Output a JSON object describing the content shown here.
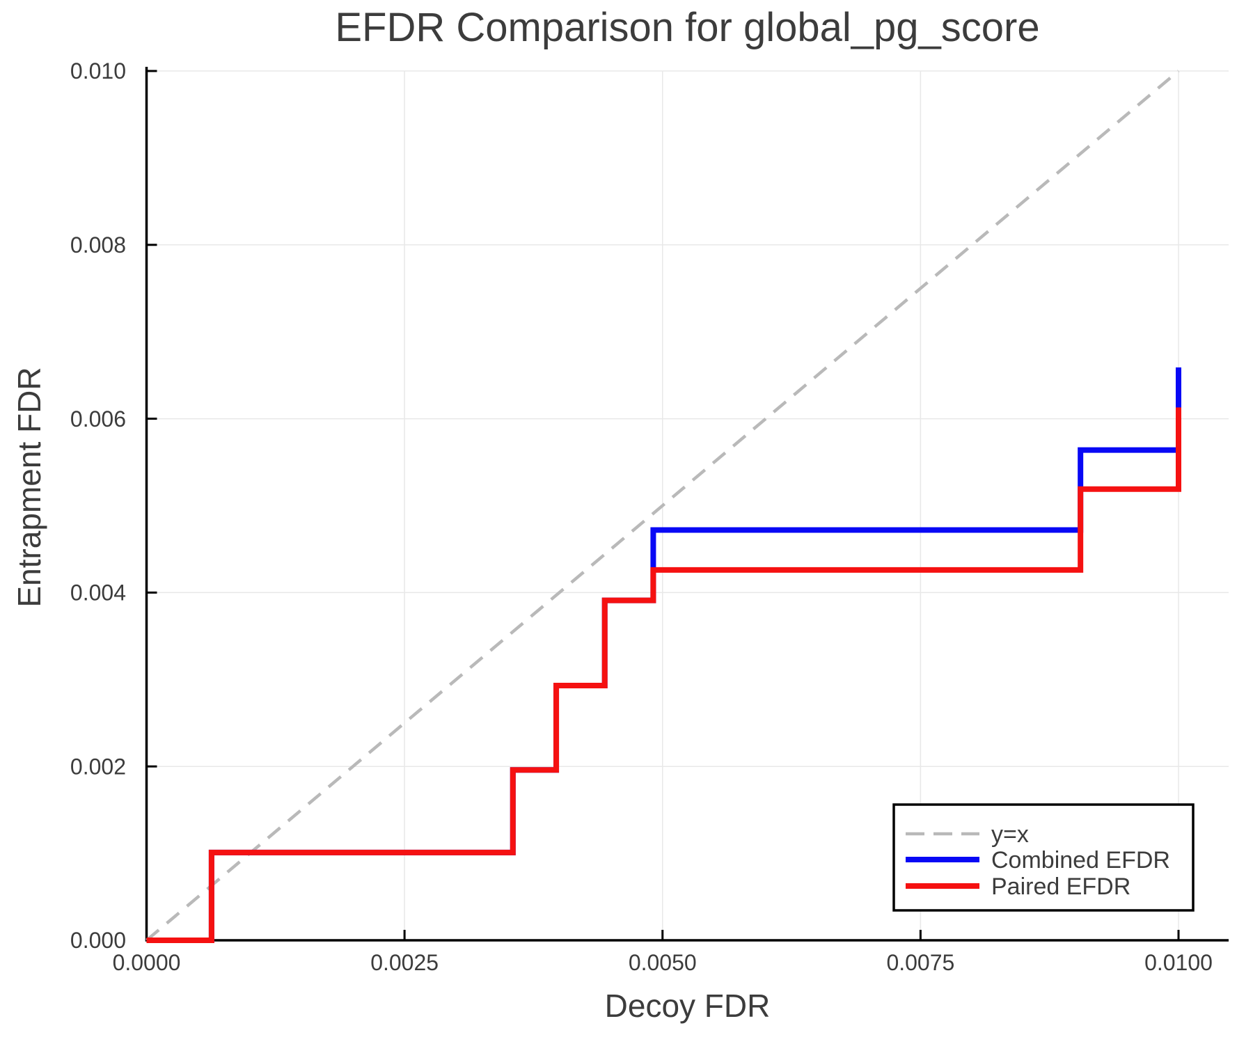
{
  "chart_data": {
    "type": "line",
    "subtype": "step",
    "title": "EFDR Comparison for global_pg_score",
    "xlabel": "Decoy FDR",
    "ylabel": "Entrapment FDR",
    "xlim": [
      0.0,
      0.01
    ],
    "ylim": [
      0.0,
      0.01
    ],
    "grid": true,
    "xticks": {
      "values": [
        0.0,
        0.0025,
        0.005,
        0.0075,
        0.01
      ],
      "labels": [
        "0.0000",
        "0.0025",
        "0.0050",
        "0.0075",
        "0.0100"
      ]
    },
    "yticks": {
      "values": [
        0.0,
        0.002,
        0.004,
        0.006,
        0.008,
        0.01
      ],
      "labels": [
        "0.000",
        "0.002",
        "0.004",
        "0.006",
        "0.008",
        "0.010"
      ]
    },
    "legend": {
      "position": "lower right",
      "entries": [
        "y=x",
        "Combined EFDR",
        "Paired EFDR"
      ]
    },
    "series": [
      {
        "name": "y=x",
        "color": "#b9b9b9",
        "style": "dashed",
        "width": 4.5,
        "points": [
          [
            0.0,
            0.0
          ],
          [
            0.01,
            0.01
          ]
        ]
      },
      {
        "name": "Combined EFDR",
        "color": "#0808f5",
        "style": "solid",
        "width": 8,
        "points": [
          [
            0.0,
            0.0
          ],
          [
            0.00063,
            0.0
          ],
          [
            0.00063,
            0.00101
          ],
          [
            0.00355,
            0.00101
          ],
          [
            0.00355,
            0.00196
          ],
          [
            0.00397,
            0.00196
          ],
          [
            0.00397,
            0.00293
          ],
          [
            0.00444,
            0.00293
          ],
          [
            0.00444,
            0.00391
          ],
          [
            0.00491,
            0.00391
          ],
          [
            0.00491,
            0.00472
          ],
          [
            0.00905,
            0.00472
          ],
          [
            0.00905,
            0.00564
          ],
          [
            0.01,
            0.00564
          ],
          [
            0.01,
            0.00659
          ]
        ]
      },
      {
        "name": "Paired EFDR",
        "color": "#f51111",
        "style": "solid",
        "width": 8,
        "points": [
          [
            0.0,
            0.0
          ],
          [
            0.00063,
            0.0
          ],
          [
            0.00063,
            0.00101
          ],
          [
            0.00355,
            0.00101
          ],
          [
            0.00355,
            0.00196
          ],
          [
            0.00397,
            0.00196
          ],
          [
            0.00397,
            0.00293
          ],
          [
            0.00444,
            0.00293
          ],
          [
            0.00444,
            0.00391
          ],
          [
            0.00491,
            0.00391
          ],
          [
            0.00491,
            0.00426
          ],
          [
            0.00905,
            0.00426
          ],
          [
            0.00905,
            0.00519
          ],
          [
            0.01,
            0.00519
          ],
          [
            0.01,
            0.00613
          ]
        ]
      }
    ],
    "colors": {
      "text": "#3c3c3c",
      "grid": "#e8e8e8",
      "spine": "#000000",
      "legend_border": "#000000",
      "background": "#ffffff"
    }
  }
}
